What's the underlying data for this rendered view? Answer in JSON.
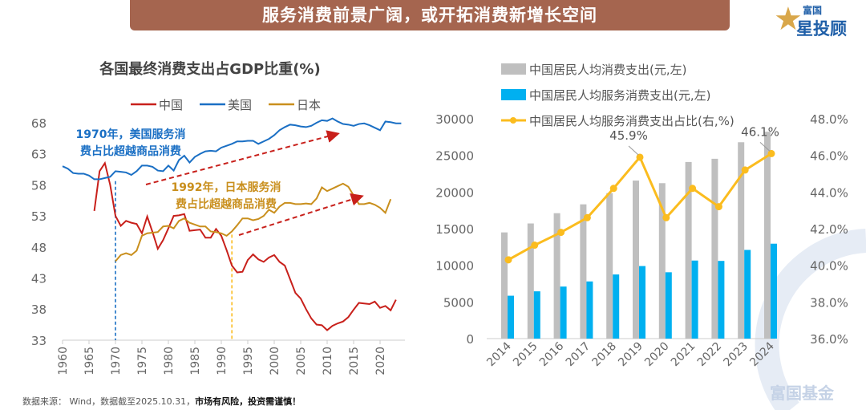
{
  "banner": {
    "title": "服务消费前景广阔，或开拓消费新增长空间"
  },
  "logo": {
    "line1": "富国",
    "line2": "星投顾",
    "icon": "star-icon"
  },
  "watermark": "富国基金",
  "footer": {
    "source": "数据来源： Wind，数据截至2025.10.31，",
    "warning": "市场有风险，投资需谨慎！"
  },
  "chart_data": [
    {
      "type": "line",
      "title": "各国最终消费支出占GDP比重(%)",
      "ylim": [
        33,
        68
      ],
      "yticks": [
        "68",
        "63",
        "58",
        "53",
        "48",
        "43",
        "38",
        "33"
      ],
      "xticks": [
        "1960",
        "1965",
        "1970",
        "1975",
        "1980",
        "1985",
        "1990",
        "1995",
        "2000",
        "2005",
        "2010",
        "2015",
        "2020"
      ],
      "xlim": [
        1960,
        2025
      ],
      "legend_position": "top",
      "annotations": [
        {
          "text": "1970年，美国服务消费占比超越商品消费",
          "line1": "1970年，美国服务消",
          "line2": "费占比超越商品消费",
          "year": 1970,
          "color": "#1a6fc4"
        },
        {
          "text": "1992年，日本服务消费占比超越商品消费",
          "line1": "1992年，日本服务消",
          "line2": "费占比超越商品消费",
          "year": 1992,
          "color": "#c98f1d"
        }
      ],
      "series": [
        {
          "name": "中国",
          "color": "#c8201b",
          "start": 1966,
          "values": [
            53.8,
            60.2,
            61.5,
            58.0,
            53.0,
            51.4,
            52.2,
            51.9,
            51.7,
            50.2,
            52.9,
            50.4,
            47.7,
            49.1,
            51.0,
            53.0,
            53.1,
            53.3,
            50.6,
            50.7,
            50.8,
            49.5,
            49.5,
            50.9,
            49.8,
            47.5,
            45.0,
            43.9,
            44.0,
            45.9,
            46.8,
            46.0,
            45.6,
            46.3,
            46.7,
            45.6,
            45.0,
            42.8,
            40.6,
            39.7,
            38.0,
            36.5,
            35.5,
            35.4,
            34.6,
            35.3,
            35.7,
            36.0,
            36.7,
            37.9,
            39.0,
            38.9,
            38.8,
            39.2,
            38.2,
            38.5,
            37.8,
            39.5
          ]
        },
        {
          "name": "美国",
          "color": "#1a6fc4",
          "start": 1960,
          "values": [
            61.0,
            60.6,
            59.9,
            59.8,
            59.8,
            59.5,
            58.9,
            58.9,
            59.1,
            59.3,
            60.2,
            60.1,
            60.0,
            59.6,
            60.2,
            61.1,
            61.1,
            60.9,
            60.3,
            60.2,
            61.1,
            60.3,
            62.0,
            62.7,
            61.6,
            62.5,
            63.0,
            63.4,
            63.5,
            63.4,
            64.0,
            64.3,
            64.6,
            65.0,
            65.0,
            65.1,
            65.1,
            64.6,
            65.0,
            65.4,
            66.0,
            66.8,
            67.3,
            67.7,
            67.6,
            67.4,
            67.3,
            67.5,
            68.0,
            68.4,
            68.3,
            68.7,
            68.2,
            67.8,
            67.7,
            67.5,
            67.8,
            67.9,
            67.6,
            67.2,
            66.8,
            68.2,
            68.1,
            67.9,
            67.9
          ]
        },
        {
          "name": "日本",
          "color": "#c98f1d",
          "start": 1970,
          "values": [
            45.7,
            46.7,
            47.0,
            46.7,
            47.4,
            49.8,
            50.2,
            50.3,
            50.4,
            51.3,
            51.4,
            51.0,
            52.2,
            52.6,
            51.9,
            51.6,
            51.3,
            51.3,
            50.5,
            50.4,
            50.2,
            49.8,
            50.5,
            51.5,
            52.6,
            52.6,
            52.3,
            52.5,
            53.0,
            54.0,
            53.5,
            54.5,
            55.1,
            55.1,
            54.9,
            54.9,
            55.0,
            54.9,
            55.8,
            57.6,
            57.0,
            57.4,
            57.8,
            58.2,
            57.7,
            56.3,
            54.9,
            54.9,
            55.1,
            54.8,
            54.3,
            53.5,
            55.7
          ]
        }
      ]
    },
    {
      "type": "bar+line",
      "categories": [
        "2014",
        "2015",
        "2016",
        "2017",
        "2018",
        "2019",
        "2020",
        "2021",
        "2022",
        "2023",
        "2024"
      ],
      "ylim_left": [
        0,
        30000
      ],
      "yticks_left": [
        "0",
        "5000",
        "10000",
        "15000",
        "20000",
        "25000",
        "30000"
      ],
      "ylim_right": [
        36,
        48
      ],
      "yticks_right": [
        "36.0%",
        "38.0%",
        "40.0%",
        "42.0%",
        "44.0%",
        "46.0%",
        "48.0%"
      ],
      "legend_position": "top",
      "series": [
        {
          "name": "中国居民人均消费支出(元,左)",
          "type": "bar",
          "color": "#bfbfbf",
          "values": [
            14491,
            15712,
            17111,
            18322,
            19853,
            21559,
            21210,
            24100,
            24538,
            26796,
            28227
          ]
        },
        {
          "name": "中国居民人均服务消费支出(元,左)",
          "type": "bar",
          "color": "#00b0f0",
          "values": [
            5850,
            6450,
            7100,
            7800,
            8750,
            9900,
            9050,
            10650,
            10600,
            12100,
            12950
          ]
        },
        {
          "name": "中国居民人均服务消费支出占比(右,%)",
          "type": "line",
          "color": "#fbbc1e",
          "values": [
            40.3,
            41.1,
            41.8,
            42.6,
            44.2,
            45.9,
            42.6,
            44.2,
            43.2,
            45.2,
            46.1
          ]
        }
      ],
      "data_labels": [
        {
          "category": "2019",
          "text": "45.9%"
        },
        {
          "category": "2024",
          "text": "46.1%"
        }
      ]
    }
  ]
}
